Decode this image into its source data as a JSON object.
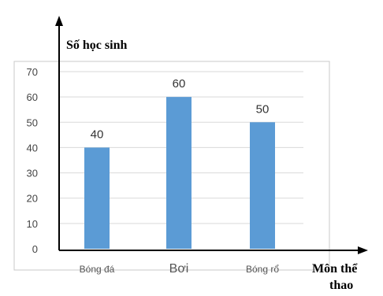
{
  "chart_data": {
    "type": "bar",
    "categories": [
      "Bóng đá",
      "Bơi",
      "Bóng rổ"
    ],
    "values": [
      40,
      60,
      50
    ],
    "ylabel": "Số học sinh",
    "xlabel": [
      "Môn thể",
      "thao"
    ],
    "ylim": [
      0,
      70
    ],
    "yticks": [
      0,
      10,
      20,
      30,
      40,
      50,
      60,
      70
    ],
    "grid": true,
    "data_labels": true,
    "colors": {
      "bar": "#5b9bd5",
      "grid": "#d9d9d9",
      "axis": "#000000",
      "frame": "#c8c8c8"
    }
  }
}
